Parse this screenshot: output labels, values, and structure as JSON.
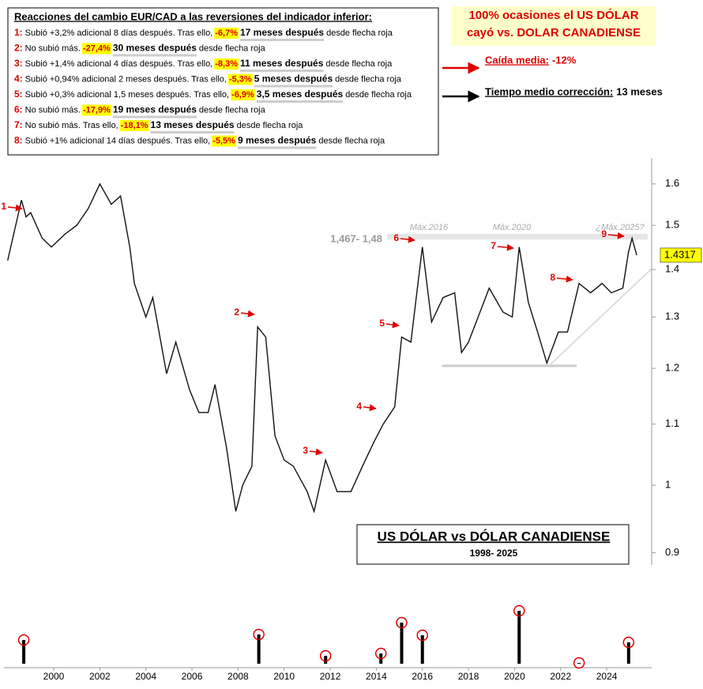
{
  "annotations": {
    "notes": {
      "title": "Reacciones del cambio EUR/CAD a las reversiones del indicador inferior:",
      "lines": [
        {
          "num": "1:",
          "pre": "Subió +3,2% adicional 8 días después. Tras ello,",
          "pct": "-6,7%",
          "months": "17 meses después",
          "post": "desde flecha roja"
        },
        {
          "num": "2:",
          "pre": "No subió más.",
          "pct": "-27,4%",
          "months": "30 meses después",
          "post": "desde flecha roja"
        },
        {
          "num": "3:",
          "pre": "Subió +1,4% adicional 4 días después. Tras ello,",
          "pct": "-8,3%",
          "months": "11 meses después",
          "post": "desde flecha roja"
        },
        {
          "num": "4:",
          "pre": "Subió +0,94% adicional 2 meses después. Tras ello,",
          "pct": "-5,3%",
          "months": "5 meses después",
          "post": "desde flecha roja"
        },
        {
          "num": "5:",
          "pre": "Subió +0,3% adicional 1,5 meses después. Tras ello,",
          "pct": "-6,9%",
          "months": "3,5 meses después",
          "post": "desde flecha roja"
        },
        {
          "num": "6:",
          "pre": "No subió más.",
          "pct": "-17,9%",
          "months": "19 meses después",
          "post": "desde flecha roja"
        },
        {
          "num": "7:",
          "pre": "No subió más. Tras ello,",
          "pct": "-18,1%",
          "months": "13 meses después",
          "post": "desde flecha roja"
        },
        {
          "num": "8:",
          "pre": "Subió +1% adicional 14 días después. Tras ello,",
          "pct": "-5,5%",
          "months": "9 meses después",
          "post": "desde flecha roja"
        }
      ]
    },
    "headline": [
      "100% ocasiones el US DÓLAR",
      "cayó vs. DOLAR CANADIENSE"
    ],
    "avg_drop": {
      "label": "Caída media:",
      "value": "-12%"
    },
    "avg_time": {
      "label": "Tiempo medio corrección:",
      "value": "13 meses"
    }
  },
  "chart_data": [
    {
      "type": "line",
      "title": "US DÓLAR vs DÓLAR CANADIENSE",
      "subtitle": "1998- 2025",
      "x": [
        1998.0,
        1998.6,
        1998.8,
        1999.0,
        1999.5,
        1999.9,
        2000.5,
        2001.0,
        2001.5,
        2002.0,
        2002.5,
        2002.9,
        2003.3,
        2003.5,
        2004.0,
        2004.3,
        2004.9,
        2005.3,
        2005.9,
        2006.3,
        2006.7,
        2007.0,
        2007.5,
        2007.9,
        2008.2,
        2008.6,
        2008.85,
        2009.2,
        2009.6,
        2010.0,
        2010.4,
        2011.0,
        2011.3,
        2011.8,
        2012.3,
        2012.9,
        2013.4,
        2013.9,
        2014.3,
        2014.8,
        2015.1,
        2015.5,
        2016.0,
        2016.4,
        2016.9,
        2017.4,
        2017.7,
        2018.0,
        2018.5,
        2018.9,
        2019.5,
        2019.9,
        2020.2,
        2020.6,
        2021.0,
        2021.4,
        2021.9,
        2022.3,
        2022.8,
        2023.3,
        2023.8,
        2024.2,
        2024.7,
        2024.95,
        2025.1,
        2025.3
      ],
      "values": [
        1.42,
        1.56,
        1.52,
        1.53,
        1.47,
        1.45,
        1.48,
        1.5,
        1.54,
        1.6,
        1.55,
        1.57,
        1.45,
        1.37,
        1.3,
        1.34,
        1.19,
        1.25,
        1.16,
        1.12,
        1.12,
        1.17,
        1.06,
        0.96,
        1.0,
        1.03,
        1.28,
        1.26,
        1.08,
        1.04,
        1.03,
        0.99,
        0.96,
        1.04,
        0.99,
        0.99,
        1.03,
        1.07,
        1.1,
        1.13,
        1.26,
        1.25,
        1.45,
        1.29,
        1.34,
        1.35,
        1.23,
        1.25,
        1.31,
        1.36,
        1.31,
        1.3,
        1.45,
        1.33,
        1.27,
        1.21,
        1.27,
        1.27,
        1.37,
        1.35,
        1.37,
        1.35,
        1.36,
        1.44,
        1.47,
        1.4317
      ],
      "color": "#111111",
      "log_scale": true,
      "ylim": [
        0.883,
        1.666
      ],
      "yticks": [
        0.9,
        1,
        1.1,
        1.2,
        1.3,
        1.4,
        1.5,
        1.6
      ],
      "current_value": 1.4317,
      "resistance": {
        "range": [
          1.467,
          1.48
        ],
        "label": "1,467- 1,48"
      },
      "peak_labels": [
        "Máx.2016",
        "Máx.2020",
        "¿Máx.2025?"
      ],
      "markers": [
        "1",
        "2",
        "3",
        "4",
        "5",
        "6",
        "7",
        "8",
        "9"
      ],
      "marker_color": "#e00000"
    },
    {
      "type": "bar",
      "x": [
        1998.7,
        2008.9,
        2011.8,
        2014.2,
        2015.1,
        2016.0,
        2020.2,
        2022.8,
        2024.95
      ],
      "values": [
        30,
        37,
        10,
        13,
        52,
        36,
        67,
        1,
        27
      ],
      "color": "#000000",
      "circle_color": "#e00000",
      "ylim": [
        0,
        80
      ],
      "xlim": [
        1997.84,
        2025.95
      ],
      "xticks": [
        2000,
        2002,
        2004,
        2006,
        2008,
        2010,
        2012,
        2014,
        2016,
        2018,
        2020,
        2022,
        2024
      ]
    }
  ]
}
